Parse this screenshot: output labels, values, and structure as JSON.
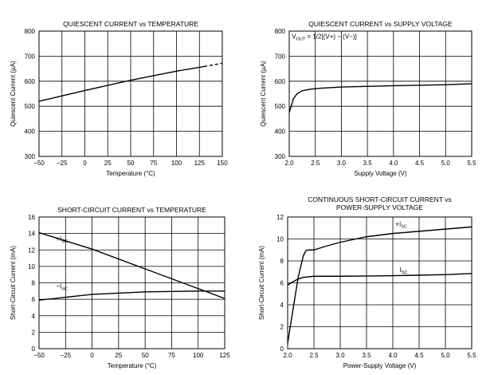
{
  "chart_data": [
    {
      "type": "line",
      "title": "QUIESCENT CURRENT vs TEMPERATURE",
      "xlabel": "Temperature (°C)",
      "ylabel": "Quiescent Current (µA)",
      "xlim": [
        -50,
        150
      ],
      "ylim": [
        300,
        800
      ],
      "xticks": [
        -50,
        -25,
        0,
        25,
        50,
        75,
        100,
        125,
        150
      ],
      "yticks": [
        300,
        400,
        500,
        600,
        700,
        800
      ],
      "xtick_labels": [
        "−50",
        "−25",
        "0",
        "25",
        "50",
        "75",
        "100",
        "125",
        "150"
      ],
      "ytick_labels": [
        "300",
        "400",
        "500",
        "600",
        "700",
        "800"
      ],
      "grid": true,
      "annotations": [],
      "series": [
        {
          "name": "Quiescent Current",
          "x": [
            -50,
            0,
            50,
            100,
            140,
            150
          ],
          "y": [
            520,
            563,
            604,
            640,
            665,
            672
          ],
          "dashed_from_x": 130
        }
      ]
    },
    {
      "type": "line",
      "title": "QUIESCENT CURRENT vs SUPPLY VOLTAGE",
      "xlabel": "Supply Voltage (V)",
      "ylabel": "Quiescent Current (µA)",
      "xlim": [
        2.0,
        5.5
      ],
      "ylim": [
        300,
        800
      ],
      "xticks": [
        2.0,
        2.5,
        3.0,
        3.5,
        4.0,
        4.5,
        5.0,
        5.5
      ],
      "yticks": [
        300,
        400,
        500,
        600,
        700,
        800
      ],
      "xtick_labels": [
        "2.0",
        "2.5",
        "3.0",
        "3.5",
        "4.0",
        "4.5",
        "5.0",
        "5.5"
      ],
      "ytick_labels": [
        "300",
        "400",
        "500",
        "600",
        "700",
        "800"
      ],
      "grid": true,
      "annotations": [
        {
          "text": "V",
          "sub": "OUT",
          "rest": " = 1/2[(V+) − (V−)]",
          "at": [
            2.05,
            770
          ]
        }
      ],
      "series": [
        {
          "name": "Quiescent Current",
          "x": [
            2.0,
            2.03,
            2.08,
            2.15,
            2.25,
            2.4,
            2.6,
            3.0,
            4.0,
            5.0,
            5.5
          ],
          "y": [
            475,
            495,
            530,
            550,
            562,
            568,
            572,
            577,
            582,
            586,
            590
          ]
        }
      ]
    },
    {
      "type": "line",
      "title": "SHORT-CIRCUIT CURRENT vs TEMPERATURE",
      "xlabel": "Temperature (°C)",
      "ylabel": "Short-Circuit Current (mA)",
      "xlim": [
        -50,
        125
      ],
      "ylim": [
        0,
        16
      ],
      "xticks": [
        -50,
        -25,
        0,
        25,
        50,
        75,
        100,
        125
      ],
      "yticks": [
        0,
        2,
        4,
        6,
        8,
        10,
        12,
        14,
        16
      ],
      "xtick_labels": [
        "−50",
        "−25",
        "0",
        "25",
        "50",
        "75",
        "100",
        "125"
      ],
      "ytick_labels": [
        "0",
        "2",
        "4",
        "6",
        "8",
        "10",
        "12",
        "14",
        "16"
      ],
      "grid": true,
      "annotations": [
        {
          "text": "+I",
          "sub": "SC",
          "at": [
            -34,
            13.1
          ]
        },
        {
          "text": "−I",
          "sub": "SC",
          "at": [
            -34,
            7.3
          ]
        }
      ],
      "series": [
        {
          "name": "+ISC",
          "x": [
            -50,
            0,
            50,
            100,
            125
          ],
          "y": [
            14.1,
            12.1,
            9.7,
            7.3,
            6.1
          ]
        },
        {
          "name": "−ISC",
          "x": [
            -50,
            0,
            50,
            100,
            125
          ],
          "y": [
            5.9,
            6.6,
            6.9,
            7.0,
            7.0
          ]
        }
      ]
    },
    {
      "type": "line",
      "title": "CONTINUOUS SHORT-CIRCUIT CURRENT vs",
      "title_line2": "POWER-SUPPLY VOLTAGE",
      "xlabel": "Power-Supply Voltage (V)",
      "ylabel": "Short-Circuit Current (mA)",
      "xlim": [
        2.0,
        5.5
      ],
      "ylim": [
        0,
        12
      ],
      "xticks": [
        2.0,
        2.5,
        3.0,
        3.5,
        4.0,
        4.5,
        5.0,
        5.5
      ],
      "yticks": [
        0,
        2,
        4,
        6,
        8,
        10,
        12
      ],
      "xtick_labels": [
        "2.0",
        "2.5",
        "3.0",
        "3.5",
        "4.0",
        "4.5",
        "5.0",
        "5.5"
      ],
      "ytick_labels": [
        "0",
        "2",
        "4",
        "6",
        "8",
        "10",
        "12"
      ],
      "grid": true,
      "annotations": [
        {
          "text": "+I",
          "sub": "SC",
          "at": [
            4.05,
            11.15
          ]
        },
        {
          "text": "I",
          "sub": "SC",
          "at": [
            4.13,
            7.0
          ]
        }
      ],
      "series": [
        {
          "name": "+ISC",
          "x": [
            2.0,
            2.1,
            2.2,
            2.3,
            2.35,
            2.4,
            2.5,
            2.7,
            3.0,
            3.5,
            4.0,
            4.5,
            5.0,
            5.5
          ],
          "y": [
            0.5,
            3.5,
            6.5,
            8.5,
            8.95,
            9.0,
            9.0,
            9.3,
            9.7,
            10.2,
            10.5,
            10.7,
            10.9,
            11.1
          ]
        },
        {
          "name": "ISC",
          "x": [
            2.0,
            2.1,
            2.2,
            2.3,
            2.5,
            3.0,
            3.5,
            4.0,
            4.5,
            5.0,
            5.5
          ],
          "y": [
            5.8,
            6.1,
            6.35,
            6.5,
            6.6,
            6.6,
            6.62,
            6.65,
            6.7,
            6.75,
            6.85
          ]
        }
      ]
    }
  ]
}
